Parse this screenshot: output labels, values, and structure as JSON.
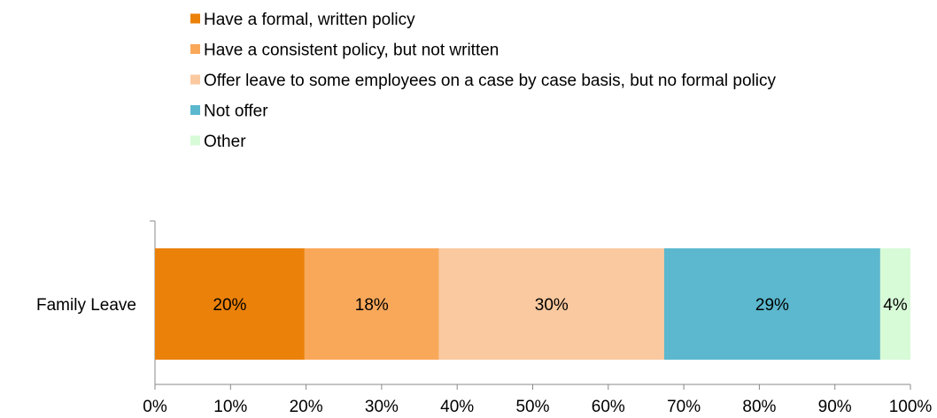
{
  "chart_data": {
    "type": "bar",
    "orientation": "horizontal",
    "stacked": true,
    "percent_scale": true,
    "categories": [
      "Family Leave"
    ],
    "series": [
      {
        "name": "Have a formal, written policy",
        "values": [
          19.8
        ],
        "label": "20%",
        "color": "#EB8109"
      },
      {
        "name": "Have a consistent policy, but not written",
        "values": [
          17.8
        ],
        "label": "18%",
        "color": "#F9A85A"
      },
      {
        "name": "Offer leave to some employees on a case by case basis, but no formal policy",
        "values": [
          29.8
        ],
        "label": "30%",
        "color": "#FAC9A0"
      },
      {
        "name": "Not offer",
        "values": [
          28.6
        ],
        "label": "29%",
        "color": "#5BB8CE"
      },
      {
        "name": "Other",
        "values": [
          4.0
        ],
        "label": "4%",
        "color": "#D7FAD7"
      }
    ],
    "x_ticks": [
      "0%",
      "10%",
      "20%",
      "30%",
      "40%",
      "50%",
      "60%",
      "70%",
      "80%",
      "90%",
      "100%"
    ],
    "xlim": [
      0,
      100
    ],
    "grid": false,
    "legend_position": "top"
  }
}
